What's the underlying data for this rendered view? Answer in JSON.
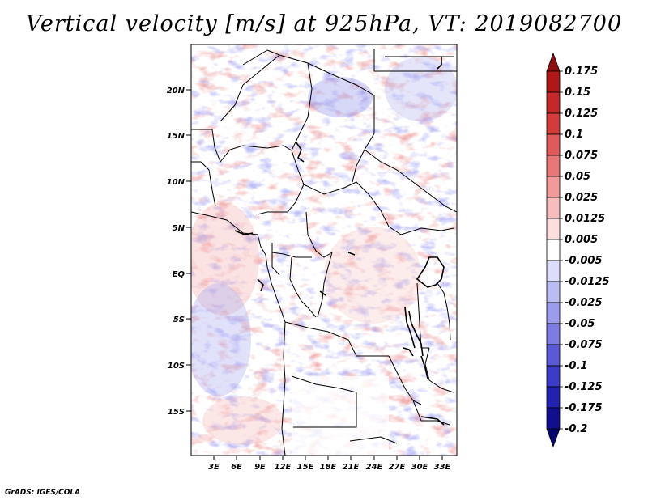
{
  "title": "Vertical velocity [m/s] at 925hPa, VT: 2019082700",
  "credit": "GrADS: IGES/COLA",
  "map": {
    "lat_labels": [
      "20N",
      "15N",
      "10N",
      "5N",
      "EQ",
      "5S",
      "10S",
      "15S"
    ],
    "lon_labels": [
      "3E",
      "6E",
      "9E",
      "12E",
      "15E",
      "18E",
      "21E",
      "24E",
      "27E",
      "30E",
      "33E"
    ]
  },
  "colorbar": {
    "labels": [
      "0.175",
      "0.15",
      "0.125",
      "0.1",
      "0.075",
      "0.05",
      "0.025",
      "0.0125",
      "0.005",
      "-0.005",
      "-0.0125",
      "-0.025",
      "-0.05",
      "-0.075",
      "-0.1",
      "-0.125",
      "-0.175",
      "-0.2"
    ],
    "colors": [
      "#8c1010",
      "#b01818",
      "#c42828",
      "#d43c3c",
      "#e05a5a",
      "#e87878",
      "#f09a9a",
      "#f7bcbc",
      "#fcdede",
      "#ffffff",
      "#dcdcfb",
      "#bcbcf4",
      "#9c9cec",
      "#7c7ce2",
      "#5a5ad6",
      "#3c3cc8",
      "#2222b0",
      "#10108e",
      "#06066e"
    ]
  }
}
